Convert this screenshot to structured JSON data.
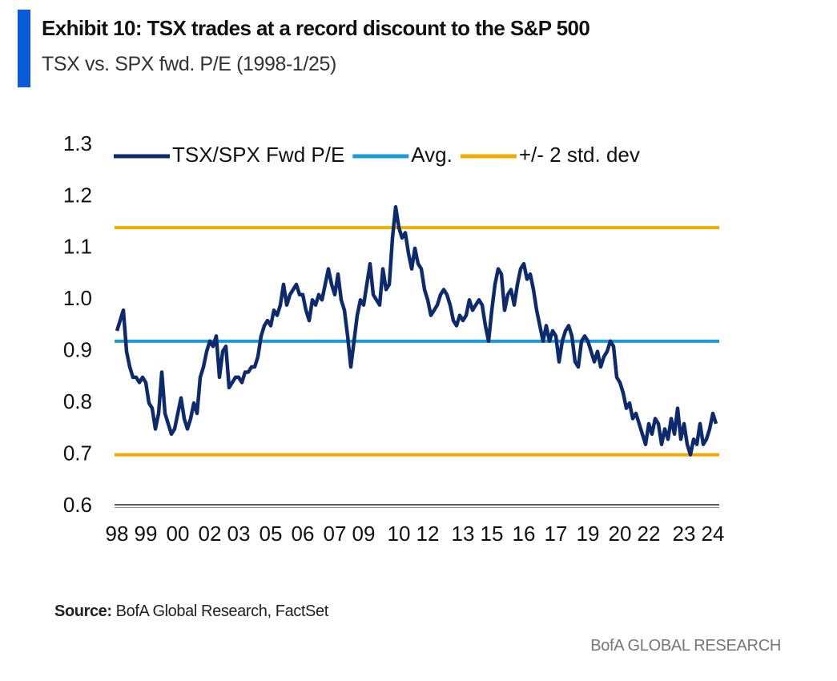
{
  "chart_data": {
    "type": "line",
    "title": "Exhibit 10: TSX trades at a record discount to the S&P 500",
    "subtitle": "TSX vs. SPX fwd. P/E (1998-1/25)",
    "categories": [
      "98",
      null,
      null,
      null,
      null,
      null,
      null,
      null,
      null,
      "99",
      null,
      null,
      null,
      null,
      null,
      null,
      null,
      null,
      null,
      "00",
      null,
      null,
      null,
      null,
      null,
      null,
      null,
      null,
      null,
      "02",
      null,
      null,
      null,
      null,
      null,
      null,
      null,
      null,
      "03",
      null,
      null,
      null,
      null,
      null,
      null,
      null,
      null,
      null,
      "05",
      null,
      null,
      null,
      null,
      null,
      null,
      null,
      null,
      null,
      "06",
      null,
      null,
      null,
      null,
      null,
      null,
      null,
      null,
      null,
      "07",
      null,
      null,
      null,
      null,
      null,
      null,
      null,
      null,
      "09",
      null,
      null,
      null,
      null,
      null,
      null,
      null,
      null,
      null,
      null,
      "10",
      null,
      null,
      null,
      null,
      null,
      null,
      null,
      null,
      "12",
      null,
      null,
      null,
      null,
      null,
      null,
      null,
      null,
      null,
      null,
      "13",
      null,
      null,
      null,
      null,
      null,
      null,
      null,
      null,
      "15",
      null,
      null,
      null,
      null,
      null,
      null,
      null,
      null,
      null,
      "16",
      null,
      null,
      null,
      null,
      null,
      null,
      null,
      null,
      null,
      "17",
      null,
      null,
      null,
      null,
      null,
      null,
      null,
      null,
      null,
      "19",
      null,
      null,
      null,
      null,
      null,
      null,
      null,
      null,
      null,
      "20",
      null,
      null,
      null,
      null,
      null,
      null,
      null,
      null,
      "22",
      null,
      null,
      null,
      null,
      null,
      null,
      null,
      null,
      null,
      null,
      "23",
      null,
      null,
      null,
      null,
      null,
      null,
      null,
      null,
      "24",
      null
    ],
    "series": [
      {
        "name": "TSX/SPX Fwd P/E",
        "color": "#0e2a6e",
        "values": [
          0.94,
          0.96,
          0.98,
          0.9,
          0.87,
          0.85,
          0.85,
          0.84,
          0.85,
          0.84,
          0.8,
          0.79,
          0.75,
          0.78,
          0.86,
          0.78,
          0.76,
          0.74,
          0.75,
          0.78,
          0.81,
          0.77,
          0.75,
          0.77,
          0.8,
          0.78,
          0.85,
          0.87,
          0.9,
          0.92,
          0.91,
          0.93,
          0.85,
          0.9,
          0.91,
          0.83,
          0.84,
          0.85,
          0.85,
          0.84,
          0.86,
          0.86,
          0.87,
          0.87,
          0.89,
          0.93,
          0.95,
          0.96,
          0.95,
          0.98,
          0.97,
          0.99,
          1.03,
          0.99,
          1.01,
          1.02,
          1.03,
          1.01,
          1.01,
          0.98,
          0.96,
          1.0,
          0.99,
          1.01,
          1.0,
          1.03,
          1.06,
          1.03,
          1.01,
          1.05,
          1.0,
          0.98,
          0.93,
          0.87,
          0.92,
          0.97,
          1.0,
          0.99,
          1.03,
          1.07,
          1.01,
          1.0,
          0.99,
          1.06,
          1.02,
          1.03,
          1.12,
          1.18,
          1.14,
          1.12,
          1.13,
          1.09,
          1.06,
          1.1,
          1.07,
          1.06,
          1.02,
          1.0,
          0.97,
          0.98,
          0.99,
          1.01,
          1.02,
          1.01,
          0.99,
          0.96,
          0.95,
          0.97,
          0.96,
          0.97,
          1.0,
          0.98,
          0.99,
          1.0,
          0.99,
          0.95,
          0.92,
          0.98,
          1.03,
          1.06,
          1.05,
          0.98,
          1.01,
          1.02,
          0.99,
          1.03,
          1.06,
          1.07,
          1.04,
          1.05,
          1.02,
          0.98,
          0.95,
          0.92,
          0.95,
          0.92,
          0.94,
          0.93,
          0.88,
          0.92,
          0.94,
          0.95,
          0.93,
          0.88,
          0.87,
          0.92,
          0.93,
          0.92,
          0.9,
          0.88,
          0.9,
          0.87,
          0.89,
          0.9,
          0.92,
          0.91,
          0.85,
          0.84,
          0.82,
          0.79,
          0.8,
          0.77,
          0.78,
          0.76,
          0.74,
          0.72,
          0.76,
          0.74,
          0.77,
          0.76,
          0.72,
          0.75,
          0.73,
          0.77,
          0.74,
          0.79,
          0.73,
          0.76,
          0.72,
          0.7,
          0.73,
          0.72,
          0.76,
          0.72,
          0.73,
          0.75,
          0.78,
          0.76
        ]
      }
    ],
    "hlines": [
      {
        "name": "Avg.",
        "color": "#1a9bd7",
        "values": [
          0.92
        ]
      },
      {
        "name": "+/- 2 std. dev",
        "color": "#f2a900",
        "values": [
          1.14,
          0.7
        ]
      }
    ],
    "ylim": [
      0.6,
      1.3
    ],
    "yticks": [
      0.6,
      0.7,
      0.8,
      0.9,
      {
        "value": 1,
        "label": "1.0"
      },
      1.1,
      1.2,
      1.3
    ],
    "grid": false
  },
  "source": {
    "label": "Source:",
    "text": "BofA Global Research, FactSet"
  },
  "footer": "BofA GLOBAL RESEARCH"
}
